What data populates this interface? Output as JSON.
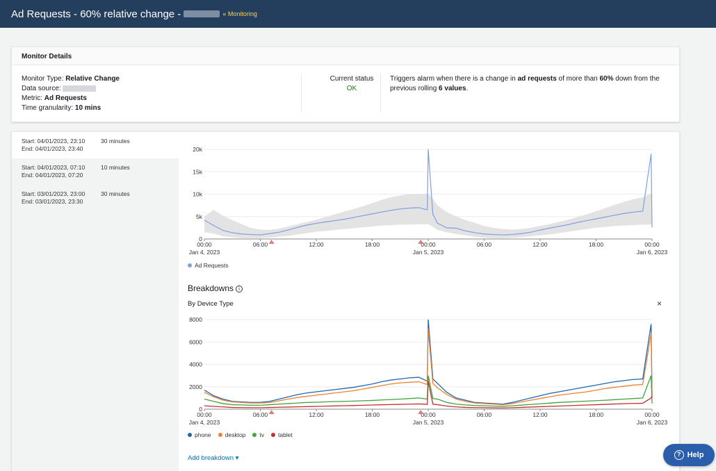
{
  "header": {
    "title": "Ad Requests - 60% relative change -",
    "crumb": "« Monitoring"
  },
  "details": {
    "heading": "Monitor Details",
    "monitor_type_label": "Monitor Type:",
    "monitor_type": "Relative Change",
    "data_source_label": "Data source:",
    "metric_label": "Metric:",
    "metric": "Ad Requests",
    "granularity_label": "Time granularity:",
    "granularity": "10 mins",
    "status_label": "Current status",
    "status": "OK",
    "status_color": "#1d8102",
    "trigger_1": "Triggers alarm when there is a change in",
    "trigger_metric": "ad requests",
    "trigger_2": "of more than",
    "trigger_pct": "60%",
    "trigger_3": "down from the previous rolling",
    "trigger_n": "6 values",
    "trigger_4": "."
  },
  "alarms": [
    {
      "start": "Start: 04/01/2023, 23:10",
      "end": "End: 04/01/2023, 23:40",
      "duration": "30 minutes"
    },
    {
      "start": "Start: 04/01/2023, 07:10",
      "end": "End: 04/01/2023, 07:20",
      "duration": "10 minutes"
    },
    {
      "start": "Start: 03/01/2023, 23:00",
      "end": "End: 03/01/2023, 23:30",
      "duration": "30 minutes"
    }
  ],
  "breakdowns": {
    "title": "Breakdowns",
    "info_icon": "info-icon",
    "device_title": "By Device Type",
    "close": "×",
    "add": "Add breakdown ▾"
  },
  "help": {
    "label": "Help",
    "icon": "question-icon"
  },
  "chart_data": [
    {
      "type": "line",
      "x_ticks": [
        "00:00",
        "06:00",
        "12:00",
        "18:00",
        "00:00",
        "06:00",
        "12:00",
        "18:00",
        "00:00"
      ],
      "x_date_labels": [
        "Jan 4, 2023",
        "Jan 5, 2023",
        "Jan 6, 2023"
      ],
      "y_ticks": [
        "0",
        "5k",
        "10k",
        "15k",
        "20k"
      ],
      "ylim": [
        0,
        20000
      ],
      "hours": [
        0,
        1,
        2,
        3,
        4,
        5,
        6,
        7,
        8,
        9,
        10,
        11,
        12,
        13,
        14,
        15,
        16,
        17,
        18,
        19,
        20,
        21,
        22,
        23,
        23.9,
        24,
        24.5,
        25,
        26,
        27,
        28,
        29,
        30,
        31,
        32,
        33,
        34,
        35,
        36,
        37,
        38,
        39,
        40,
        41,
        42,
        43,
        44,
        45,
        46,
        47,
        47.9,
        48
      ],
      "series": [
        {
          "name": "Ad Requests",
          "color": "#7f9fde",
          "values": [
            4200,
            3000,
            1900,
            1400,
            1100,
            1000,
            900,
            1200,
            1500,
            2000,
            2600,
            3100,
            3500,
            3800,
            4100,
            4400,
            4800,
            5200,
            5600,
            6000,
            6400,
            6700,
            6900,
            7000,
            6500,
            20000,
            5500,
            3500,
            2500,
            2400,
            1800,
            1400,
            1100,
            1000,
            900,
            1000,
            1200,
            1500,
            2000,
            2400,
            2800,
            3200,
            3700,
            4100,
            4500,
            4900,
            5300,
            5700,
            6000,
            6200,
            19000,
            2600
          ]
        },
        {
          "name": "band-upper",
          "color": "#e3e3e3",
          "values": [
            5000,
            6500,
            5200,
            4200,
            3300,
            2500,
            2100,
            2000,
            2300,
            2800,
            3300,
            3800,
            4300,
            4900,
            5500,
            6100,
            6700,
            7300,
            8000,
            8700,
            9300,
            9700,
            10000,
            10100,
            10100,
            10100,
            9000,
            7500,
            6000,
            5000,
            4200,
            3600,
            2900,
            2500,
            2200,
            2100,
            2200,
            2500,
            2900,
            3300,
            3800,
            4300,
            4900,
            5500,
            6200,
            6900,
            7600,
            8300,
            8900,
            9300,
            10100,
            10100
          ]
        },
        {
          "name": "band-lower",
          "color": "#e3e3e3",
          "values": [
            1500,
            1200,
            600,
            400,
            200,
            200,
            200,
            300,
            500,
            700,
            1000,
            1300,
            1600,
            1800,
            2000,
            2200,
            2400,
            2600,
            2800,
            3000,
            3100,
            3200,
            3200,
            3300,
            3300,
            3300,
            2700,
            2000,
            1500,
            1100,
            800,
            500,
            300,
            200,
            200,
            300,
            400,
            600,
            800,
            1000,
            1300,
            1600,
            1900,
            2200,
            2500,
            2700,
            2900,
            3000,
            3100,
            3200,
            3200,
            3200
          ]
        }
      ],
      "alarm_markers_hours": [
        7.2,
        23.2
      ]
    },
    {
      "type": "line",
      "x_ticks": [
        "00:00",
        "06:00",
        "12:00",
        "18:00",
        "00:00",
        "06:00",
        "12:00",
        "18:00",
        "00:00"
      ],
      "x_date_labels": [
        "Jan 4, 2023",
        "Jan 5, 2023",
        "Jan 6, 2023"
      ],
      "y_ticks": [
        "0",
        "2000",
        "4000",
        "6000",
        "8000"
      ],
      "ylim": [
        0,
        8000
      ],
      "hours": [
        0,
        1,
        2,
        3,
        4,
        5,
        6,
        7,
        8,
        9,
        10,
        11,
        12,
        13,
        14,
        15,
        16,
        17,
        18,
        19,
        20,
        21,
        22,
        23,
        23.9,
        24,
        24.5,
        25,
        26,
        27,
        28,
        29,
        30,
        31,
        32,
        33,
        34,
        35,
        36,
        37,
        38,
        39,
        40,
        41,
        42,
        43,
        44,
        45,
        46,
        47,
        47.9,
        48
      ],
      "series": [
        {
          "name": "phone",
          "color": "#1f66b3",
          "values": [
            1700,
            1200,
            900,
            700,
            650,
            600,
            600,
            700,
            900,
            1100,
            1300,
            1450,
            1550,
            1650,
            1750,
            1850,
            1950,
            2100,
            2250,
            2450,
            2600,
            2700,
            2800,
            2850,
            2500,
            8000,
            2700,
            2300,
            1500,
            1000,
            800,
            600,
            550,
            500,
            450,
            600,
            800,
            1000,
            1200,
            1400,
            1550,
            1700,
            1850,
            2000,
            2150,
            2300,
            2450,
            2550,
            2650,
            2700,
            7600,
            1300
          ]
        },
        {
          "name": "desktop",
          "color": "#ee8130",
          "values": [
            1500,
            1100,
            800,
            650,
            600,
            550,
            550,
            600,
            750,
            900,
            1050,
            1150,
            1250,
            1350,
            1450,
            1550,
            1650,
            1800,
            1950,
            2100,
            2250,
            2350,
            2400,
            2450,
            2200,
            7200,
            2300,
            1900,
            1300,
            900,
            700,
            550,
            500,
            450,
            400,
            500,
            650,
            800,
            950,
            1100,
            1250,
            1350,
            1450,
            1550,
            1700,
            1850,
            1950,
            2050,
            2150,
            2200,
            6800,
            1000
          ]
        },
        {
          "name": "tv",
          "color": "#3fa33f",
          "values": [
            900,
            700,
            500,
            400,
            380,
            350,
            350,
            400,
            450,
            500,
            550,
            600,
            620,
            650,
            680,
            700,
            720,
            750,
            780,
            820,
            860,
            900,
            950,
            1000,
            900,
            3000,
            950,
            900,
            600,
            450,
            380,
            330,
            300,
            280,
            260,
            300,
            360,
            420,
            480,
            540,
            600,
            640,
            680,
            720,
            760,
            800,
            850,
            900,
            950,
            1000,
            3000,
            500
          ]
        },
        {
          "name": "tablet",
          "color": "#c0312e",
          "values": [
            300,
            250,
            200,
            150,
            140,
            130,
            130,
            150,
            170,
            190,
            210,
            230,
            250,
            270,
            290,
            310,
            330,
            350,
            370,
            390,
            410,
            430,
            450,
            470,
            430,
            2500,
            450,
            400,
            280,
            200,
            160,
            140,
            130,
            120,
            110,
            130,
            160,
            190,
            220,
            250,
            280,
            310,
            340,
            370,
            400,
            430,
            460,
            490,
            510,
            530,
            1000,
            1200
          ]
        }
      ],
      "alarm_markers_hours": [
        7.2,
        23.2
      ]
    }
  ]
}
